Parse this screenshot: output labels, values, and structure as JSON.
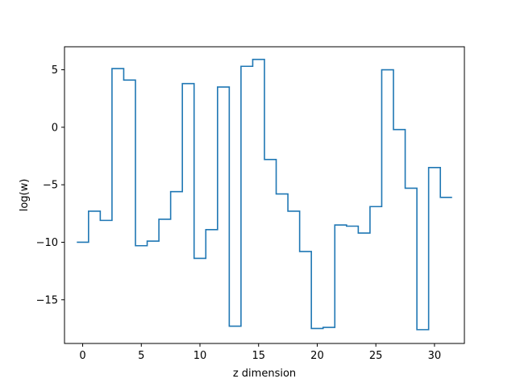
{
  "chart_data": {
    "type": "line",
    "drawstyle": "steps-mid",
    "title": "",
    "xlabel": "z dimension",
    "ylabel": "log(w)",
    "xlim": [
      -1.55,
      32.55
    ],
    "ylim": [
      -18.8,
      7.0
    ],
    "xticks": [
      0,
      5,
      10,
      15,
      20,
      25,
      30
    ],
    "yticks": [
      -15,
      -10,
      -5,
      0,
      5
    ],
    "xtick_labels": [
      "0",
      "5",
      "10",
      "15",
      "20",
      "25",
      "30"
    ],
    "ytick_labels": [
      "−15",
      "−10",
      "−5",
      "0",
      "5"
    ],
    "grid": false,
    "color": "#1f77b4",
    "series": [
      {
        "x": [
          0,
          1,
          2,
          3,
          4,
          5,
          6,
          7,
          8,
          9,
          10,
          11,
          12,
          13,
          14,
          15,
          16,
          17,
          18,
          19,
          20,
          21,
          22,
          23,
          24,
          25,
          26,
          27,
          28,
          29,
          30,
          31
        ],
        "y": [
          -10.0,
          -7.3,
          -8.1,
          5.1,
          4.1,
          -10.3,
          -9.9,
          -8.0,
          -5.6,
          3.8,
          -11.4,
          -8.9,
          3.5,
          -17.3,
          5.3,
          5.9,
          -2.8,
          -5.8,
          -7.3,
          -10.8,
          -17.5,
          -17.4,
          -8.5,
          -8.6,
          -9.2,
          -6.9,
          5.0,
          -0.2,
          -5.3,
          -17.6,
          -3.5,
          -6.1
        ]
      }
    ]
  }
}
